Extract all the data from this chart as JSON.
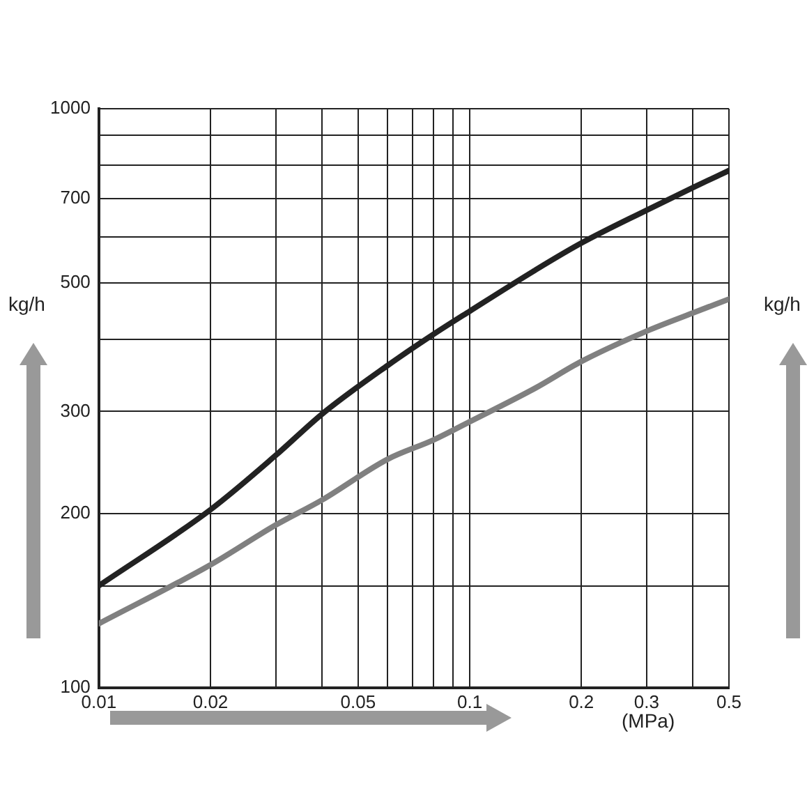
{
  "chart_data": {
    "type": "line",
    "xlabel": "(MPa)",
    "ylabel": "kg/h",
    "y2label": "kg/h",
    "log": "xy",
    "grid": true,
    "legend": false,
    "marker": "none",
    "line_style": "solid",
    "xlim": [
      0.01,
      0.5
    ],
    "ylim": [
      100,
      1000
    ],
    "xticks": [
      0.01,
      {
        "value": 0.02,
        "label": "0.02"
      },
      {
        "value": 0.03,
        "label": null
      },
      {
        "value": 0.04,
        "label": null
      },
      {
        "value": 0.05,
        "label": "0.05"
      },
      {
        "value": 0.06,
        "label": null
      },
      {
        "value": 0.07,
        "label": null
      },
      {
        "value": 0.08,
        "label": null
      },
      {
        "value": 0.09,
        "label": null
      },
      0.1,
      0.2,
      0.3,
      {
        "value": 0.4,
        "label": null
      },
      0.5
    ],
    "yticks": [
      100,
      {
        "value": 150,
        "label": null
      },
      200,
      300,
      {
        "value": 400,
        "label": null
      },
      500,
      {
        "value": 600,
        "label": null
      },
      700,
      {
        "value": 800,
        "label": null
      },
      {
        "value": 900,
        "label": null
      },
      1000
    ],
    "x": [
      0.01,
      0.02,
      0.03,
      0.04,
      0.06,
      0.08,
      0.1,
      0.15,
      0.2,
      0.3,
      0.4,
      0.5
    ],
    "series": [
      {
        "color": "#222222",
        "values": [
          150,
          203,
          252,
          297,
          360,
          408,
          447,
          526,
          586,
          668,
          731,
          782
        ]
      },
      {
        "color": "#808080",
        "values": [
          129,
          163,
          191,
          211,
          248,
          268,
          288,
          329,
          366,
          413,
          444,
          469
        ]
      }
    ]
  }
}
